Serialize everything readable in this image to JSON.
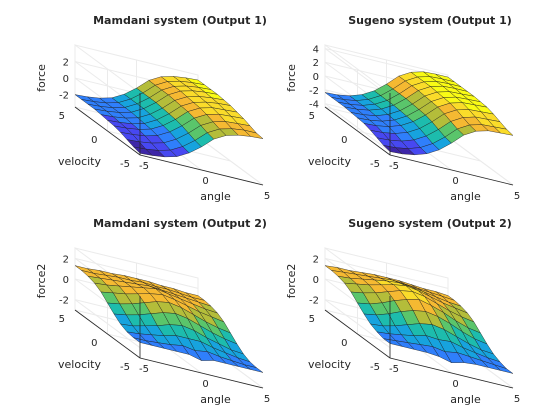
{
  "chart_data": [
    {
      "type": "surface",
      "title": "Mamdani system (Output 1)",
      "xlabel": "angle",
      "ylabel": "velocity",
      "zlabel": "force",
      "x": [
        -5,
        -4,
        -3,
        -2,
        -1,
        0,
        1,
        2,
        3,
        4,
        5
      ],
      "y": [
        -5,
        -4,
        -3,
        -2,
        -1,
        0,
        1,
        2,
        3,
        4,
        5
      ],
      "xticks": [
        "-5",
        "0",
        "5"
      ],
      "yticks": [
        "-5",
        "0",
        "5"
      ],
      "zticks": [
        "-2",
        "0",
        "2"
      ],
      "xlim": [
        -5,
        5
      ],
      "ylim": [
        -5,
        5
      ],
      "zlim": [
        -3.5,
        4
      ],
      "z": [
        [
          -3.3,
          -3.2,
          -3.0,
          -2.6,
          -1.8,
          -0.7,
          0.6,
          1.4,
          1.8,
          2.0,
          2.1
        ],
        [
          -3.1,
          -3.0,
          -2.8,
          -2.4,
          -1.6,
          -0.5,
          0.8,
          1.6,
          2.0,
          2.2,
          2.2
        ],
        [
          -2.8,
          -2.7,
          -2.5,
          -2.1,
          -1.3,
          -0.2,
          1.1,
          1.9,
          2.3,
          2.4,
          2.5
        ],
        [
          -2.5,
          -2.4,
          -2.2,
          -1.8,
          -1.0,
          0.1,
          1.4,
          2.2,
          2.6,
          2.7,
          2.8
        ],
        [
          -2.3,
          -2.2,
          -2.0,
          -1.6,
          -0.8,
          0.3,
          1.6,
          2.4,
          2.8,
          2.9,
          3.0
        ],
        [
          -2.2,
          -2.1,
          -1.9,
          -1.5,
          -0.7,
          0.4,
          1.7,
          2.5,
          2.9,
          3.1,
          3.2
        ],
        [
          -2.1,
          -2.0,
          -1.8,
          -1.4,
          -0.6,
          0.5,
          1.8,
          2.6,
          3.0,
          3.2,
          3.3
        ],
        [
          -2.0,
          -1.9,
          -1.7,
          -1.3,
          -0.5,
          0.6,
          1.9,
          2.7,
          3.1,
          3.3,
          3.4
        ],
        [
          -2.0,
          -1.9,
          -1.7,
          -1.3,
          -0.5,
          0.6,
          1.9,
          2.7,
          3.1,
          3.3,
          3.4
        ],
        [
          -2.0,
          -1.9,
          -1.7,
          -1.3,
          -0.5,
          0.6,
          1.9,
          2.7,
          3.1,
          3.3,
          3.4
        ],
        [
          -2.0,
          -1.9,
          -1.7,
          -1.3,
          -0.5,
          0.6,
          1.9,
          2.7,
          3.1,
          3.3,
          3.4
        ]
      ]
    },
    {
      "type": "surface",
      "title": "Sugeno system (Output 1)",
      "xlabel": "angle",
      "ylabel": "velocity",
      "zlabel": "force",
      "x": [
        -5,
        -4,
        -3,
        -2,
        -1,
        0,
        1,
        2,
        3,
        4,
        5
      ],
      "y": [
        -5,
        -4,
        -3,
        -2,
        -1,
        0,
        1,
        2,
        3,
        4,
        5
      ],
      "xticks": [
        "-5",
        "0",
        "5"
      ],
      "yticks": [
        "-5",
        "0",
        "5"
      ],
      "zticks": [
        "-4",
        "-2",
        "0",
        "2",
        "4"
      ],
      "xlim": [
        -5,
        5
      ],
      "ylim": [
        -5,
        5
      ],
      "zlim": [
        -4.5,
        4.5
      ],
      "z": [
        [
          -4.0,
          -3.9,
          -3.6,
          -3.0,
          -2.0,
          -0.6,
          1.0,
          2.0,
          2.5,
          2.6,
          2.7
        ],
        [
          -3.8,
          -3.7,
          -3.4,
          -2.8,
          -1.8,
          -0.4,
          1.2,
          2.2,
          2.7,
          2.8,
          2.9
        ],
        [
          -3.4,
          -3.3,
          -3.0,
          -2.4,
          -1.4,
          0.0,
          1.6,
          2.6,
          3.1,
          3.2,
          3.3
        ],
        [
          -3.0,
          -2.9,
          -2.6,
          -2.0,
          -1.0,
          0.4,
          2.0,
          3.0,
          3.5,
          3.6,
          3.7
        ],
        [
          -2.7,
          -2.6,
          -2.3,
          -1.7,
          -0.7,
          0.7,
          2.3,
          3.3,
          3.8,
          3.9,
          4.0
        ],
        [
          -2.6,
          -2.5,
          -2.2,
          -1.6,
          -0.6,
          0.8,
          2.4,
          3.4,
          3.9,
          4.0,
          4.1
        ],
        [
          -2.5,
          -2.4,
          -2.1,
          -1.5,
          -0.5,
          0.9,
          2.5,
          3.5,
          4.0,
          4.1,
          4.2
        ],
        [
          -2.4,
          -2.3,
          -2.0,
          -1.4,
          -0.4,
          1.0,
          2.6,
          3.6,
          4.1,
          4.2,
          4.2
        ],
        [
          -2.4,
          -2.3,
          -2.0,
          -1.4,
          -0.4,
          1.0,
          2.6,
          3.6,
          4.1,
          4.2,
          4.2
        ],
        [
          -2.4,
          -2.3,
          -2.0,
          -1.4,
          -0.4,
          1.0,
          2.6,
          3.6,
          4.1,
          4.2,
          4.2
        ],
        [
          -2.4,
          -2.3,
          -2.0,
          -1.4,
          -0.4,
          1.0,
          2.6,
          3.6,
          4.1,
          4.2,
          4.2
        ]
      ]
    },
    {
      "type": "surface",
      "title": "Mamdani system (Output 2)",
      "xlabel": "angle",
      "ylabel": "velocity",
      "zlabel": "force2",
      "x": [
        -5,
        -4,
        -3,
        -2,
        -1,
        0,
        1,
        2,
        3,
        4,
        5
      ],
      "y": [
        -5,
        -4,
        -3,
        -2,
        -1,
        0,
        1,
        2,
        3,
        4,
        5
      ],
      "xticks": [
        "-5",
        "0",
        "5"
      ],
      "yticks": [
        "-5",
        "0",
        "5"
      ],
      "zticks": [
        "-2",
        "0",
        "2"
      ],
      "xlim": [
        -5,
        5
      ],
      "ylim": [
        -5,
        5
      ],
      "zlim": [
        -3,
        3
      ],
      "z": [
        [
          -1.5,
          -1.5,
          -1.5,
          -1.5,
          -1.5,
          -1.8,
          -1.5,
          -1.5,
          -1.5,
          -1.5,
          -1.5
        ],
        [
          -1.5,
          -1.5,
          -1.4,
          -1.3,
          -1.1,
          -1.3,
          -1.1,
          -1.3,
          -1.4,
          -1.5,
          -1.5
        ],
        [
          -1.4,
          -1.3,
          -1.1,
          -0.9,
          -0.6,
          -0.6,
          -0.6,
          -0.9,
          -1.1,
          -1.3,
          -1.4
        ],
        [
          -1.1,
          -1.0,
          -0.7,
          -0.4,
          0.0,
          0.2,
          0.0,
          -0.4,
          -0.7,
          -1.0,
          -1.1
        ],
        [
          -0.6,
          -0.4,
          -0.1,
          0.3,
          0.7,
          0.9,
          0.7,
          0.3,
          -0.1,
          -0.4,
          -0.6
        ],
        [
          0.0,
          0.2,
          0.5,
          0.9,
          1.3,
          1.5,
          1.3,
          0.9,
          0.5,
          0.2,
          0.0
        ],
        [
          0.6,
          0.8,
          1.0,
          1.3,
          1.6,
          1.8,
          1.6,
          1.3,
          1.0,
          0.8,
          0.6
        ],
        [
          1.0,
          1.1,
          1.3,
          1.5,
          1.7,
          1.9,
          1.7,
          1.5,
          1.3,
          1.1,
          1.0
        ],
        [
          1.2,
          1.3,
          1.4,
          1.5,
          1.6,
          1.7,
          1.6,
          1.5,
          1.4,
          1.3,
          1.2
        ],
        [
          1.3,
          1.3,
          1.4,
          1.5,
          1.5,
          1.6,
          1.5,
          1.5,
          1.4,
          1.3,
          1.3
        ],
        [
          1.3,
          1.3,
          1.4,
          1.4,
          1.5,
          1.5,
          1.5,
          1.4,
          1.4,
          1.3,
          1.3
        ]
      ]
    },
    {
      "type": "surface",
      "title": "Sugeno system (Output 2)",
      "xlabel": "angle",
      "ylabel": "velocity",
      "zlabel": "force2",
      "x": [
        -5,
        -4,
        -3,
        -2,
        -1,
        0,
        1,
        2,
        3,
        4,
        5
      ],
      "y": [
        -5,
        -4,
        -3,
        -2,
        -1,
        0,
        1,
        2,
        3,
        4,
        5
      ],
      "xticks": [
        "-5",
        "0",
        "5"
      ],
      "yticks": [
        "-5",
        "0",
        "5"
      ],
      "zticks": [
        "-2",
        "0",
        "2"
      ],
      "xlim": [
        -5,
        5
      ],
      "ylim": [
        -5,
        5
      ],
      "zlim": [
        -3,
        3
      ],
      "z": [
        [
          -1.6,
          -1.6,
          -1.6,
          -1.6,
          -1.7,
          -2.0,
          -1.7,
          -1.6,
          -1.6,
          -1.6,
          -1.6
        ],
        [
          -1.6,
          -1.5,
          -1.4,
          -1.3,
          -1.2,
          -1.4,
          -1.2,
          -1.3,
          -1.4,
          -1.5,
          -1.6
        ],
        [
          -1.4,
          -1.3,
          -1.1,
          -0.9,
          -0.6,
          -0.7,
          -0.6,
          -0.9,
          -1.1,
          -1.3,
          -1.4
        ],
        [
          -1.1,
          -1.0,
          -0.7,
          -0.3,
          0.1,
          0.3,
          0.1,
          -0.3,
          -0.7,
          -1.0,
          -1.1
        ],
        [
          -0.6,
          -0.4,
          0.0,
          0.5,
          0.9,
          1.1,
          0.9,
          0.5,
          0.0,
          -0.4,
          -0.6
        ],
        [
          0.0,
          0.2,
          0.6,
          1.1,
          1.5,
          1.8,
          1.5,
          1.1,
          0.6,
          0.2,
          0.0
        ],
        [
          0.6,
          0.8,
          1.1,
          1.5,
          1.9,
          2.1,
          1.9,
          1.5,
          1.1,
          0.8,
          0.6
        ],
        [
          1.0,
          1.2,
          1.4,
          1.7,
          2.0,
          2.2,
          2.0,
          1.7,
          1.4,
          1.2,
          1.0
        ],
        [
          1.2,
          1.3,
          1.5,
          1.7,
          1.9,
          2.0,
          1.9,
          1.7,
          1.5,
          1.3,
          1.2
        ],
        [
          1.3,
          1.4,
          1.5,
          1.6,
          1.7,
          1.8,
          1.7,
          1.6,
          1.5,
          1.4,
          1.3
        ],
        [
          1.3,
          1.4,
          1.4,
          1.5,
          1.6,
          1.6,
          1.6,
          1.5,
          1.4,
          1.4,
          1.3
        ]
      ]
    }
  ],
  "colors": {
    "colormap": [
      "#3e26a8",
      "#4748f1",
      "#2f7ffb",
      "#17a3de",
      "#1dbcad",
      "#5ac56b",
      "#b4bd3a",
      "#f5b932",
      "#fadc2a",
      "#f9fb15"
    ],
    "axes": "#262626",
    "grid": "#ebebeb",
    "mesh": "#1a1a1a"
  }
}
